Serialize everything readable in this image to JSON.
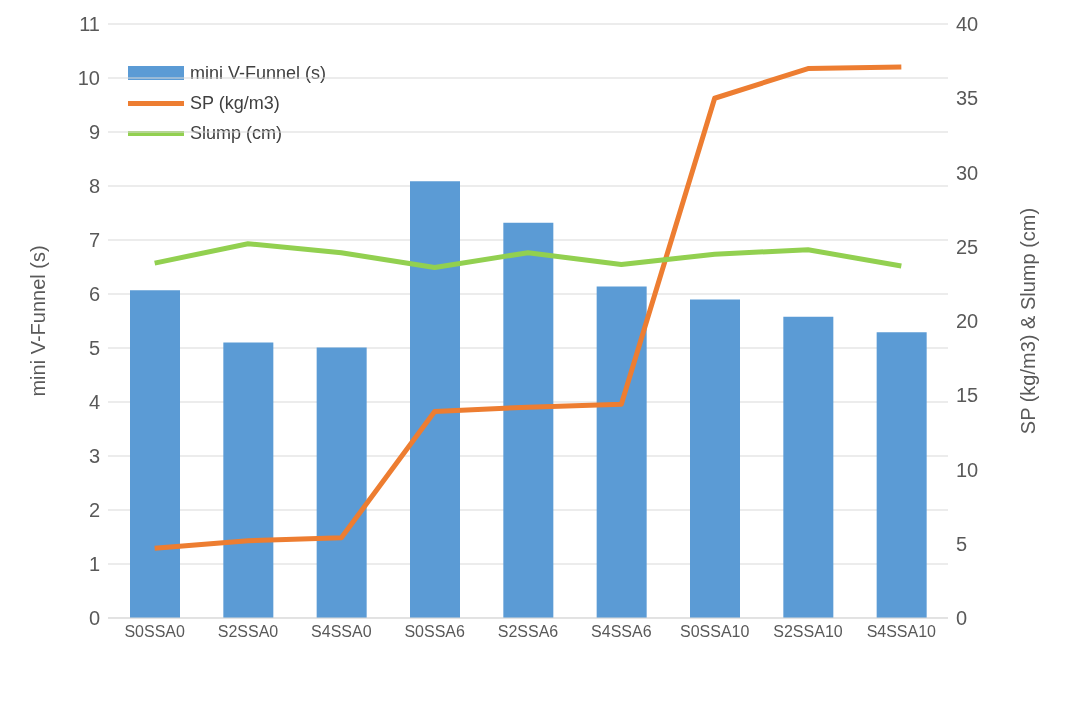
{
  "chart_data": {
    "type": "bar",
    "categories": [
      "S0SSA0",
      "S2SSA0",
      "S4SSA0",
      "S0SSA6",
      "S2SSA6",
      "S4SSA6",
      "S0SSA10",
      "S2SSA10",
      "S4SSA10"
    ],
    "series": [
      {
        "name": "mini V-Funnel (s)",
        "color": "#5b9bd5",
        "values": [
          6.07,
          5.1,
          5.01,
          8.09,
          7.32,
          6.14,
          5.9,
          5.58,
          5.29
        ]
      },
      {
        "name": "SP (kg/m3)",
        "type": "line",
        "axis": "y2",
        "color": "#ed7d31",
        "values": [
          4.7,
          5.2,
          5.4,
          13.9,
          14.2,
          14.4,
          35.0,
          37.0,
          37.1
        ]
      },
      {
        "name": "Slump (cm)",
        "type": "line",
        "axis": "y2",
        "color": "#92d050",
        "values": [
          23.9,
          25.2,
          24.6,
          23.6,
          24.6,
          23.8,
          24.5,
          24.8,
          23.7
        ]
      }
    ],
    "ylabel": "mini V-Funnel (s)",
    "y2label": "SP (kg/m3) & Slump (cm)",
    "ylim": [
      0,
      11
    ],
    "yticks": [
      0,
      1,
      2,
      3,
      4,
      5,
      6,
      7,
      8,
      9,
      10,
      11
    ],
    "y2lim": [
      0,
      40
    ],
    "y2ticks": [
      0,
      5,
      10,
      15,
      20,
      25,
      30,
      35,
      40
    ],
    "grid": "y",
    "legend": "top left",
    "marker": "none"
  }
}
